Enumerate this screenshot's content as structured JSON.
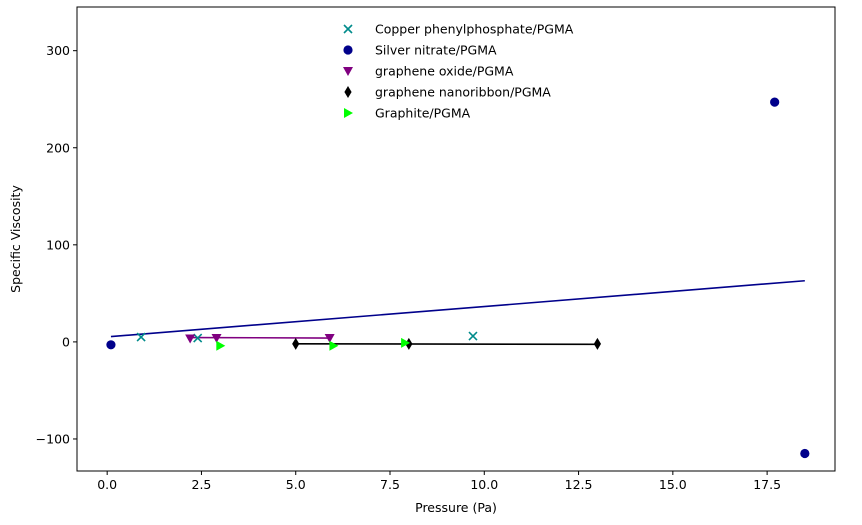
{
  "chart_data": {
    "type": "scatter",
    "title": "",
    "xlabel": "Pressure (Pa)",
    "ylabel": "Specific Viscosity",
    "xlim": [
      -0.8,
      19.3
    ],
    "ylim": [
      -133,
      345
    ],
    "xticks": [
      0.0,
      2.5,
      5.0,
      7.5,
      10.0,
      12.5,
      15.0,
      17.5
    ],
    "xtick_labels": [
      "0.0",
      "2.5",
      "5.0",
      "7.5",
      "10.0",
      "12.5",
      "15.0",
      "17.5"
    ],
    "yticks": [
      -100,
      0,
      100,
      200,
      300
    ],
    "ytick_labels": [
      "−100",
      "0",
      "100",
      "200",
      "300"
    ],
    "grid": false,
    "legend_position": "top-center",
    "series": [
      {
        "name": "Copper phenylphosphate/PGMA",
        "marker": "x",
        "color": "#008b8b",
        "points": [
          [
            0.9,
            5
          ],
          [
            2.4,
            4
          ],
          [
            9.7,
            6
          ]
        ]
      },
      {
        "name": "Silver nitrate/PGMA",
        "marker": "circle",
        "color": "#00008b",
        "points": [
          [
            0.1,
            -3
          ],
          [
            17.7,
            247
          ],
          [
            18.5,
            -115
          ]
        ],
        "fit_line": [
          [
            0.1,
            5.5
          ],
          [
            18.5,
            63
          ]
        ]
      },
      {
        "name": "graphene oxide/PGMA",
        "marker": "triangle-down",
        "color": "#800080",
        "points": [
          [
            2.2,
            3.5
          ],
          [
            2.9,
            4
          ],
          [
            5.9,
            4
          ]
        ],
        "fit_line": [
          [
            2.2,
            4.5
          ],
          [
            5.9,
            4
          ]
        ]
      },
      {
        "name": "graphene nanoribbon/PGMA",
        "marker": "thin-diamond",
        "color": "#000000",
        "points": [
          [
            5.0,
            -2
          ],
          [
            8.0,
            -2
          ],
          [
            13.0,
            -2
          ]
        ],
        "fit_line": [
          [
            5.0,
            -2
          ],
          [
            13.0,
            -2.5
          ]
        ]
      },
      {
        "name": "Graphite/PGMA",
        "marker": "triangle-right",
        "color": "#00ff00",
        "points": [
          [
            3.0,
            -4
          ],
          [
            6.0,
            -4
          ],
          [
            7.9,
            -1
          ]
        ]
      }
    ]
  }
}
